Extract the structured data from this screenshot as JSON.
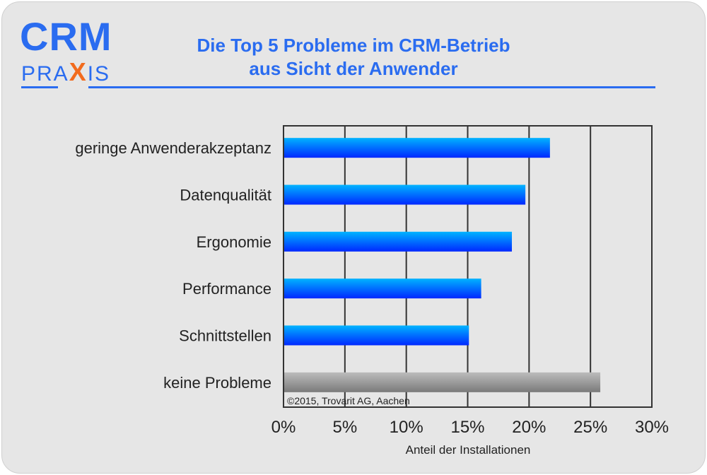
{
  "logo": {
    "line1": "CRM",
    "line2_pre": "PRA",
    "line2_x": "X",
    "line2_post": "IS"
  },
  "chart_data": {
    "type": "bar",
    "orientation": "horizontal",
    "title": "Die Top 5 Probleme im CRM-Betrieb",
    "subtitle": "aus Sicht der Anwender",
    "categories": [
      "geringe Anwenderakzeptanz",
      "Datenqualität",
      "Ergonomie",
      "Performance",
      "Schnittstellen",
      "keine Probleme"
    ],
    "values": [
      21.7,
      19.7,
      18.6,
      16.1,
      15.1,
      25.8
    ],
    "bar_colors": [
      "#0a6cff",
      "#0a6cff",
      "#0a6cff",
      "#0a6cff",
      "#0a6cff",
      "#9a9a9a"
    ],
    "xlabel": "Anteil der Installationen",
    "xlim": [
      0,
      30
    ],
    "xticks": [
      0,
      5,
      10,
      15,
      20,
      25,
      30
    ],
    "xtick_labels": [
      "0%",
      "5%",
      "10%",
      "15%",
      "20%",
      "25%",
      "30%"
    ],
    "grid": true,
    "annotation": "©2015, Trovarit AG, Aachen"
  }
}
